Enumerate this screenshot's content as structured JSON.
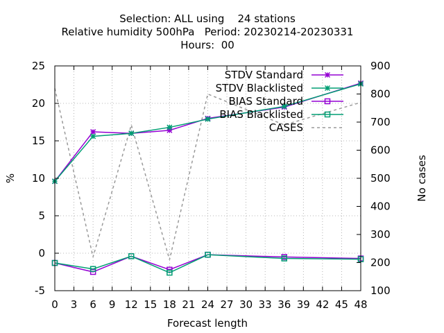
{
  "chart_data": {
    "type": "line",
    "title_lines": [
      "Selection: ALL using    24 stations",
      "Relative humidity 500hPa   Period: 20230214-20230331",
      "Hours:  00"
    ],
    "xlabel": "Forecast length",
    "ylabel": "%",
    "y2label": "No cases",
    "xlim": [
      0,
      48
    ],
    "xticks": [
      0,
      3,
      6,
      9,
      12,
      15,
      18,
      21,
      24,
      27,
      30,
      33,
      36,
      39,
      42,
      45,
      48
    ],
    "ylim": [
      -5,
      25
    ],
    "yticks": [
      -5,
      0,
      5,
      10,
      15,
      20,
      25
    ],
    "y2lim": [
      100,
      900
    ],
    "y2ticks": [
      100,
      200,
      300,
      400,
      500,
      600,
      700,
      800,
      900
    ],
    "grid": true,
    "legend_position": "top-right",
    "x": [
      0,
      6,
      12,
      18,
      24,
      36,
      48
    ],
    "series": [
      {
        "name": "STDV Standard",
        "axis": "y",
        "color": "#9400d3",
        "marker": "x-star",
        "values": [
          9.6,
          16.2,
          16.0,
          16.4,
          18.0,
          19.5,
          22.7
        ]
      },
      {
        "name": "STDV Blacklisted",
        "axis": "y",
        "color": "#009e73",
        "marker": "x-star",
        "values": [
          9.6,
          15.6,
          16.0,
          16.8,
          17.9,
          19.6,
          22.6
        ]
      },
      {
        "name": "BIAS Standard",
        "axis": "y",
        "color": "#9400d3",
        "marker": "square",
        "values": [
          -1.3,
          -2.5,
          -0.4,
          -2.2,
          -0.2,
          -0.5,
          -0.7
        ]
      },
      {
        "name": "BIAS Blacklisted",
        "axis": "y",
        "color": "#009e73",
        "marker": "square",
        "values": [
          -1.3,
          -2.1,
          -0.4,
          -2.6,
          -0.2,
          -0.7,
          -0.8
        ]
      },
      {
        "name": "CASES",
        "axis": "y2",
        "color": "#999999",
        "marker": "none",
        "dashed": true,
        "values": [
          820,
          220,
          690,
          210,
          800,
          690,
          770
        ]
      }
    ]
  }
}
